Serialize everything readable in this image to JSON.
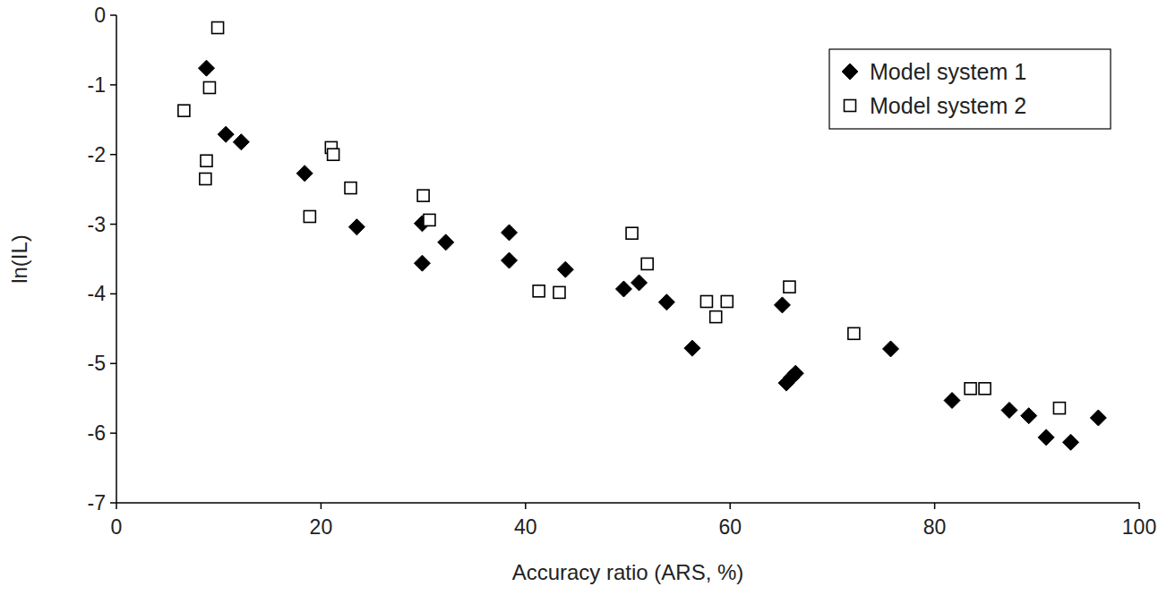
{
  "chart_data": {
    "type": "scatter",
    "x_label": "Accuracy ratio (ARS, %)",
    "y_label": "ln(IL)",
    "xlim": [
      0,
      100
    ],
    "xticks": [
      0,
      20,
      40,
      60,
      80,
      100
    ],
    "ylim": [
      -7,
      0
    ],
    "yticks": [
      -7,
      -6,
      -5,
      -4,
      -3,
      -2,
      -1,
      0
    ],
    "grid": false,
    "legend": "top-right",
    "series": [
      {
        "name": "Model system 1",
        "color": "#000000",
        "marker": "diamond",
        "x": [
          8.8,
          10.7,
          12.2,
          18.4,
          23.5,
          29.9,
          29.9,
          32.2,
          38.4,
          38.4,
          43.9,
          49.6,
          51.1,
          53.8,
          56.3,
          65.1,
          65.5,
          66.0,
          66.4,
          75.7,
          81.7,
          87.3,
          89.2,
          90.9,
          93.3,
          96.0
        ],
        "values": [
          -0.76,
          -1.71,
          -1.82,
          -2.27,
          -3.04,
          -2.99,
          -3.56,
          -3.26,
          -3.12,
          -3.52,
          -3.65,
          -3.93,
          -3.84,
          -4.12,
          -4.78,
          -4.16,
          -5.28,
          -5.2,
          -5.14,
          -4.79,
          -5.53,
          -5.67,
          -5.75,
          -6.06,
          -6.13,
          -5.78
        ]
      },
      {
        "name": "Model system 2",
        "color": "#000000",
        "marker": "open-square",
        "x": [
          9.9,
          9.1,
          6.6,
          8.8,
          8.7,
          21.0,
          21.2,
          18.9,
          22.9,
          30.0,
          30.6,
          41.3,
          43.3,
          50.4,
          51.9,
          57.7,
          58.6,
          59.7,
          65.8,
          72.1,
          83.5,
          84.9,
          92.2
        ],
        "values": [
          -0.18,
          -1.04,
          -1.37,
          -2.09,
          -2.35,
          -1.9,
          -2.0,
          -2.89,
          -2.48,
          -2.59,
          -2.94,
          -3.96,
          -3.98,
          -3.13,
          -3.57,
          -4.11,
          -4.33,
          -4.11,
          -3.9,
          -4.57,
          -5.36,
          -5.36,
          -5.64
        ]
      }
    ]
  }
}
